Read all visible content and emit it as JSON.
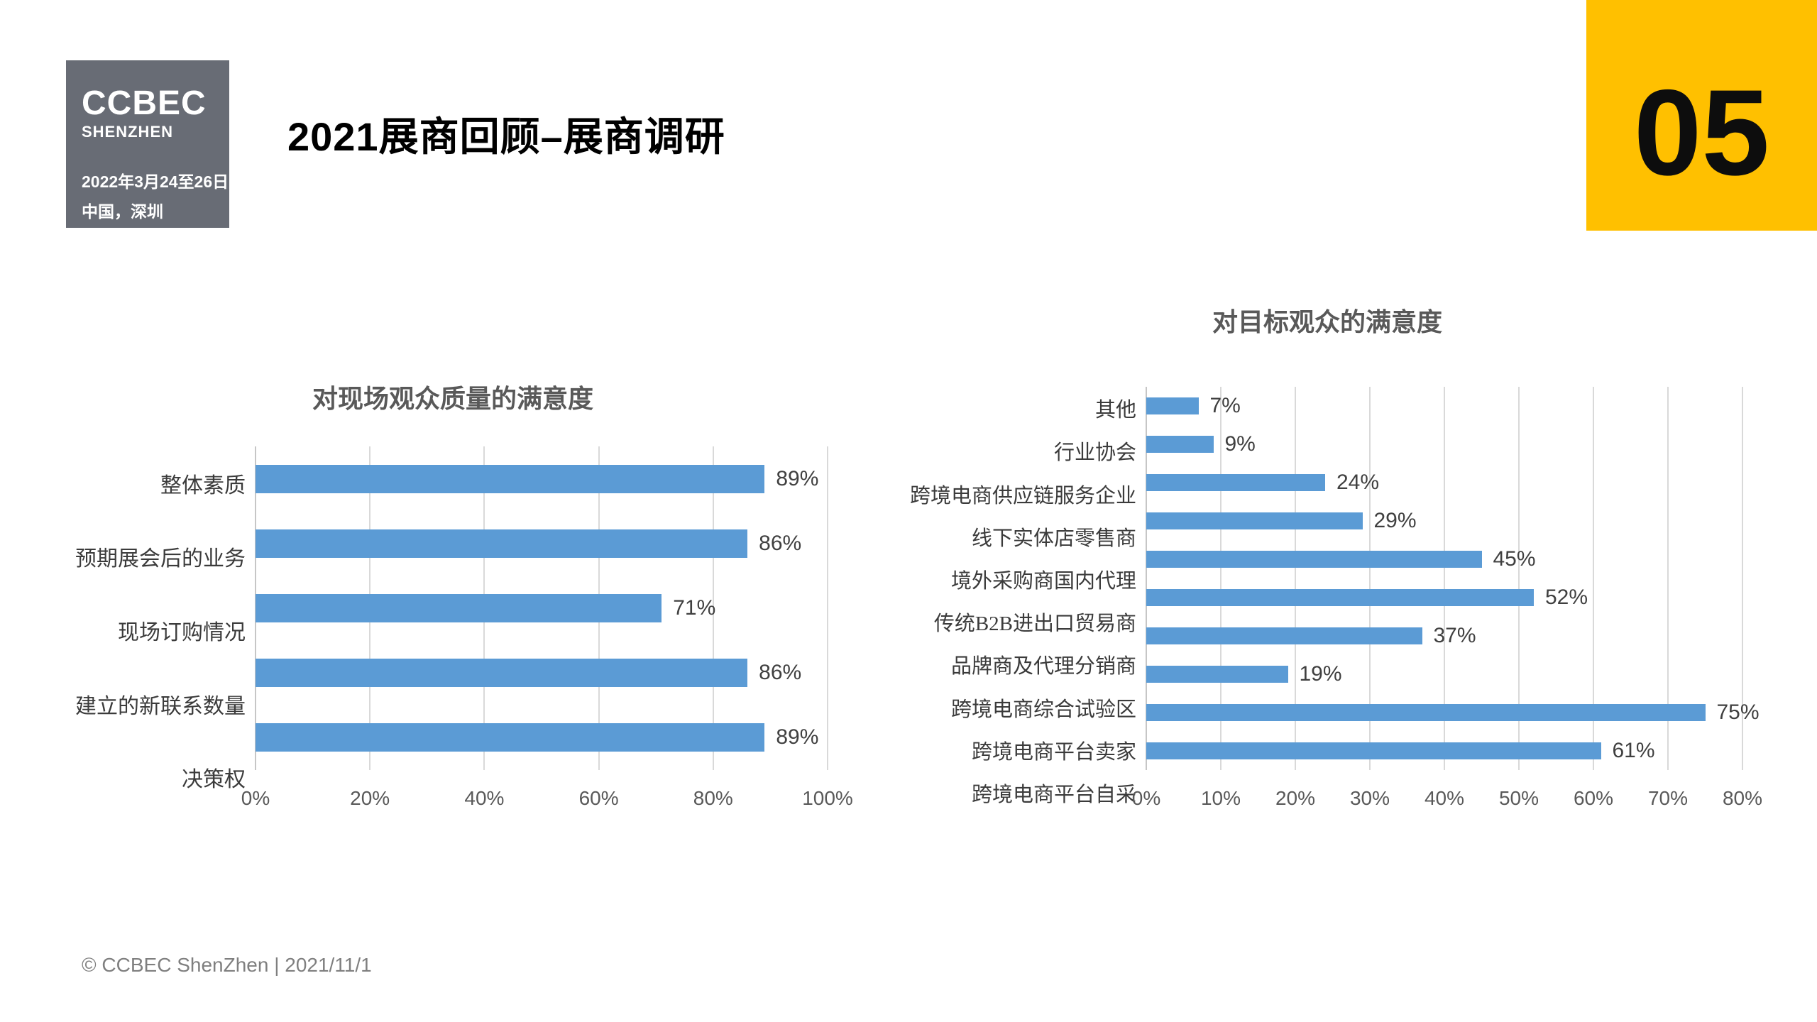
{
  "logo": {
    "line1": "CCBEC",
    "line2": "SHENZHEN",
    "line3": "2022年3月24至26日",
    "line4": "中国，深圳",
    "bg_color": "#686C75"
  },
  "header": {
    "title": "2021展商回顾–展商调研"
  },
  "badge": {
    "number": "05",
    "color": "#FFC000"
  },
  "footer": {
    "text": "© CCBEC ShenZhen | 2021/11/1"
  },
  "colors": {
    "bar_blue": "#5B9BD5",
    "gridline": "#D9D9D9",
    "chart_title_gray": "#595959",
    "value_label_gray": "#404040"
  },
  "chart_data": [
    {
      "type": "bar",
      "orientation": "horizontal",
      "title": "对现场观众质量的满意度",
      "categories": [
        "整体素质",
        "预期展会后的业务",
        "现场订购情况",
        "建立的新联系数量",
        "决策权"
      ],
      "values": [
        89,
        86,
        71,
        86,
        89
      ],
      "value_labels": [
        "89%",
        "86%",
        "71%",
        "86%",
        "89%"
      ],
      "xlim": [
        0,
        100
      ],
      "x_ticks": [
        "0%",
        "20%",
        "40%",
        "60%",
        "80%",
        "100%"
      ],
      "grid": true,
      "legend": "none",
      "bar_color": "#5B9BD5"
    },
    {
      "type": "bar",
      "orientation": "horizontal",
      "title": "对目标观众的满意度",
      "categories": [
        "其他",
        "行业协会",
        "跨境电商供应链服务企业",
        "线下实体店零售商",
        "境外采购商国内代理",
        "传统B2B进出口贸易商",
        "品牌商及代理分销商",
        "跨境电商综合试验区",
        "跨境电商平台卖家",
        "跨境电商平台自采"
      ],
      "values": [
        7,
        9,
        24,
        29,
        45,
        52,
        37,
        19,
        75,
        61
      ],
      "value_labels": [
        "7%",
        "9%",
        "24%",
        "29%",
        "45%",
        "52%",
        "37%",
        "19%",
        "75%",
        "61%"
      ],
      "xlim": [
        0,
        80
      ],
      "x_ticks": [
        "0%",
        "10%",
        "20%",
        "30%",
        "40%",
        "50%",
        "60%",
        "70%",
        "80%"
      ],
      "grid": true,
      "legend": "none",
      "bar_color": "#5B9BD5"
    }
  ]
}
